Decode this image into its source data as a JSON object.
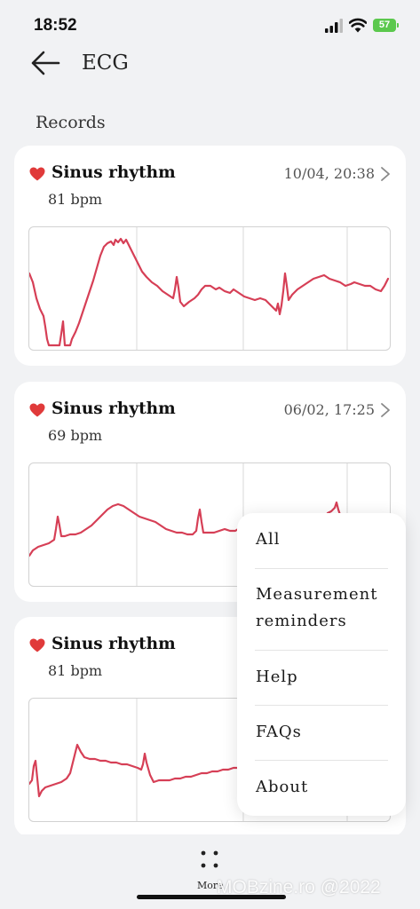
{
  "status_bar": {
    "time": "18:52",
    "battery": "57",
    "icons": [
      "cellular-signal-icon",
      "wifi-icon",
      "battery-charging-icon"
    ]
  },
  "header": {
    "title": "ECG",
    "back_icon": "arrow-left-icon"
  },
  "section": {
    "title": "Records"
  },
  "colors": {
    "heart": "#e03a3a",
    "ecg_trace": "#d63f56",
    "battery": "#5bc84d"
  },
  "records": [
    {
      "rhythm": "Sinus rhythm",
      "bpm": "81 bpm",
      "date": "10/04, 20:38"
    },
    {
      "rhythm": "Sinus rhythm",
      "bpm": "69 bpm",
      "date": "06/02, 17:25"
    },
    {
      "rhythm": "Sinus rhythm",
      "bpm": "81 bpm",
      "date": ""
    }
  ],
  "menu": {
    "items": [
      {
        "label": "All"
      },
      {
        "label": "Measurement reminders"
      },
      {
        "label": "Help"
      },
      {
        "label": "FAQs"
      },
      {
        "label": "About"
      }
    ]
  },
  "bottom_bar": {
    "more_label": "More",
    "more_icon": "four-dots-icon"
  },
  "watermark": "MOBzine.ro @2022"
}
